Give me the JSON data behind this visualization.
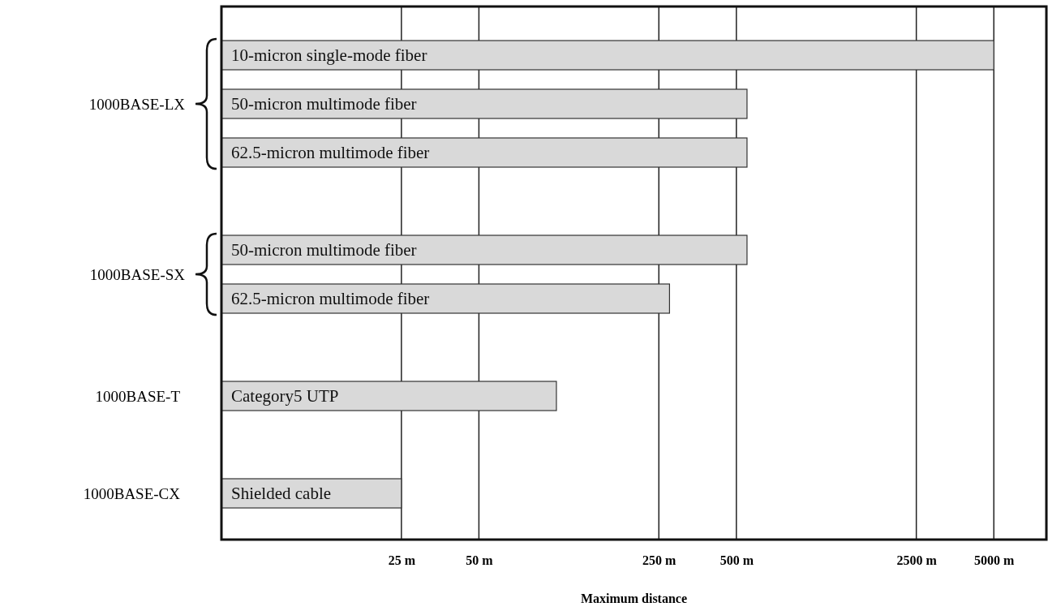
{
  "chart_data": {
    "type": "bar",
    "orientation": "horizontal",
    "log": "x",
    "xlabel": "Maximum distance",
    "categories": [
      "10-micron single-mode fiber",
      "50-micron multimode fiber",
      "62.5-micron multimode fiber",
      null,
      "50-micron multimode fiber",
      "62.5-micron multimode fiber",
      null,
      "Category5 UTP",
      null,
      "Shielded cable"
    ],
    "values": [
      5000,
      550,
      550,
      null,
      550,
      275,
      null,
      100,
      null,
      25
    ],
    "color": "#d9d9d9",
    "xlim": [
      5,
      8000
    ],
    "xticks": [
      {
        "value": 25,
        "label": "25 m"
      },
      {
        "value": 50,
        "label": "50 m"
      },
      {
        "value": 250,
        "label": "250 m"
      },
      {
        "value": 500,
        "label": "500 m"
      },
      {
        "value": 2500,
        "label": "2500 m"
      },
      {
        "value": 5000,
        "label": "5000 m"
      }
    ],
    "grid": "x",
    "annotations": [
      "1000BASE-LX",
      "1000BASE-SX",
      "1000BASE-T",
      "1000BASE-CX"
    ]
  }
}
